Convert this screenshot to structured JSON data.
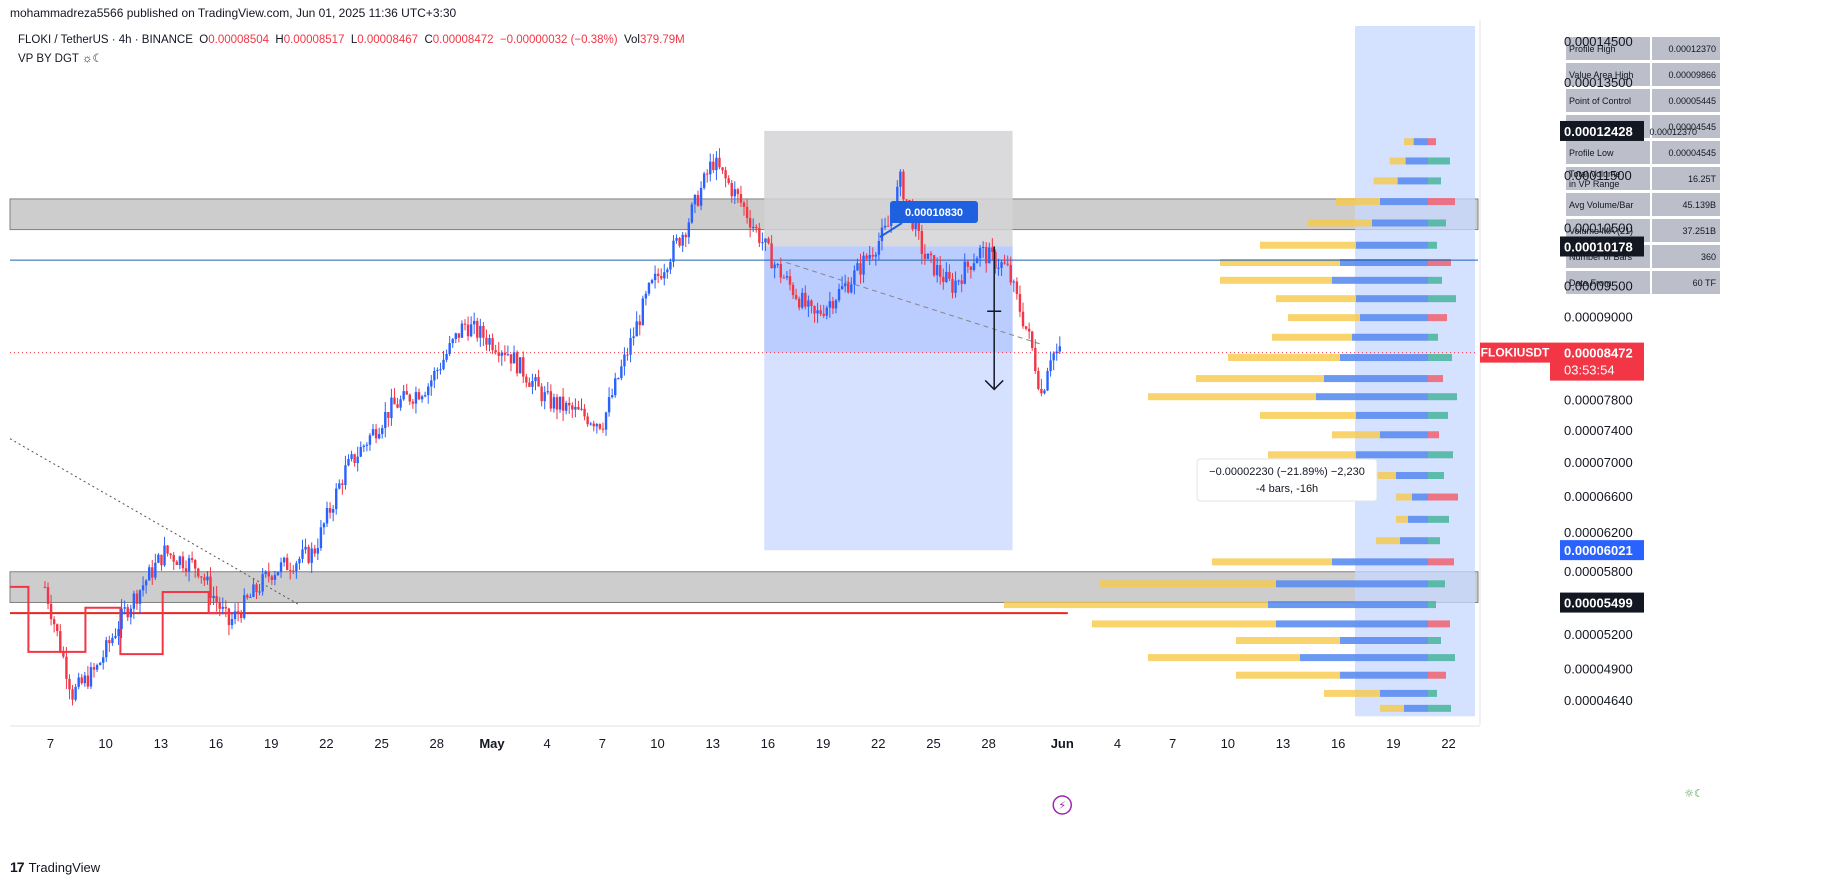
{
  "header": {
    "published": "mohammadreza5566 published on TradingView.com, Jun 01, 2025 11:36 UTC+3:30"
  },
  "legend": {
    "symbol": "FLOKI / TetherUS · 4h · BINANCE",
    "o_label": "O",
    "o_value": "0.00008504",
    "h_label": "H",
    "h_value": "0.00008517",
    "l_label": "L",
    "l_value": "0.00008467",
    "c_label": "C",
    "c_value": "0.00008472",
    "change": "−0.00000032 (−0.38%)",
    "vol_label": "Vol",
    "vol_value": "379.79M",
    "indicator": "VP BY DGT ☼☾"
  },
  "footer": {
    "logo": "17",
    "brand": "TradingView"
  },
  "colors": {
    "up": "#2962ff",
    "down": "#f23645",
    "bg": "#ffffff",
    "zone": "#c8c8c8",
    "measure_fill": "#bcd0ff",
    "vp_up": "#f7c948",
    "vp_down": "#5b8def"
  },
  "chart_data": {
    "type": "candlestick",
    "title": "FLOKI / TetherUS · 4h · BINANCE",
    "y_axis": {
      "scale": "log",
      "range": [
        4.45e-05,
        0.0001485
      ]
    },
    "y_ticks": [
      "0.00014500",
      "0.00013500",
      "0.00011500",
      "0.00010500",
      "0.00009500",
      "0.00009000",
      "0.00007800",
      "0.00007400",
      "0.00007000",
      "0.00006600",
      "0.00006200",
      "0.00005800",
      "0.00005200",
      "0.00004900",
      "0.00004640"
    ],
    "y_tick_values": [
      0.000145,
      0.000135,
      0.000115,
      0.000105,
      9.5e-05,
      9e-05,
      7.8e-05,
      7.4e-05,
      7e-05,
      6.6e-05,
      6.2e-05,
      5.8e-05,
      5.2e-05,
      4.9e-05,
      4.64e-05
    ],
    "x_ticks": [
      "7",
      "10",
      "13",
      "16",
      "19",
      "22",
      "25",
      "28",
      "May",
      "4",
      "7",
      "10",
      "13",
      "16",
      "19",
      "22",
      "25",
      "28",
      "Jun",
      "4",
      "7",
      "10",
      "13",
      "16",
      "19",
      "22"
    ],
    "x_tick_days": [
      7,
      10,
      13,
      16,
      19,
      22,
      25,
      28,
      31,
      34,
      37,
      40,
      43,
      46,
      49,
      52,
      55,
      58,
      62,
      65,
      68,
      71,
      74,
      77,
      80,
      83
    ],
    "x_range_days": [
      4.8,
      84.6
    ],
    "anchor_points": [
      {
        "day": 6.7,
        "price": 5.65e-05
      },
      {
        "day": 8.2,
        "price": 4.7e-05
      },
      {
        "day": 9.5,
        "price": 4.9e-05
      },
      {
        "day": 11,
        "price": 5.4e-05
      },
      {
        "day": 13.2,
        "price": 6e-05
      },
      {
        "day": 15,
        "price": 5.85e-05
      },
      {
        "day": 16.7,
        "price": 5.3e-05
      },
      {
        "day": 19,
        "price": 5.8e-05
      },
      {
        "day": 21.3,
        "price": 6e-05
      },
      {
        "day": 23,
        "price": 6.9e-05
      },
      {
        "day": 25.5,
        "price": 7.7e-05
      },
      {
        "day": 27.5,
        "price": 8e-05
      },
      {
        "day": 29.5,
        "price": 8.9e-05
      },
      {
        "day": 31.8,
        "price": 8.5e-05
      },
      {
        "day": 34,
        "price": 7.8e-05
      },
      {
        "day": 37,
        "price": 7.5e-05
      },
      {
        "day": 39.5,
        "price": 9.4e-05
      },
      {
        "day": 41.5,
        "price": 0.000105
      },
      {
        "day": 43,
        "price": 0.000118
      },
      {
        "day": 44.5,
        "price": 0.00011
      },
      {
        "day": 46.5,
        "price": 9.8e-05
      },
      {
        "day": 48.5,
        "price": 9e-05
      },
      {
        "day": 50.5,
        "price": 9.6e-05
      },
      {
        "day": 52.5,
        "price": 0.000105
      },
      {
        "day": 53.2,
        "price": 0.000114
      },
      {
        "day": 54.5,
        "price": 0.0001
      },
      {
        "day": 56,
        "price": 9.5e-05
      },
      {
        "day": 57.5,
        "price": 0.000101
      },
      {
        "day": 59,
        "price": 9.8e-05
      },
      {
        "day": 60.3,
        "price": 8.6e-05
      },
      {
        "day": 60.9,
        "price": 7.85e-05
      },
      {
        "day": 61.3,
        "price": 8.45e-05
      },
      {
        "day": 62.0,
        "price": 8.47e-05
      }
    ],
    "last_price": 8.472e-05,
    "horizontal_lines": [
      {
        "price": 9.94e-05,
        "color": "#1e60b0"
      },
      {
        "price": 5.4e-05,
        "color": "#e8261e",
        "x_end_day": 62.3
      }
    ],
    "zones": [
      {
        "top": 0.0001105,
        "bottom": 0.0001048
      },
      {
        "top": 5.8e-05,
        "bottom": 5.5e-05
      }
    ],
    "measure_box": {
      "x0_day": 45.8,
      "x1_day": 59.3,
      "top": 0.0001243,
      "bottom": 6.02e-05,
      "split": 0.0001018
    },
    "measure_label": [
      "−0.00002230 (−21.89%) −2,230",
      "-4 bars, -16h"
    ],
    "callout_label": "0.00010830",
    "step_line": [
      {
        "day": 4.8,
        "price": 5.65e-05
      },
      {
        "day": 5.8,
        "price": 5.65e-05
      },
      {
        "day": 5.8,
        "price": 5.05e-05
      },
      {
        "day": 8.9,
        "price": 5.05e-05
      },
      {
        "day": 8.9,
        "price": 5.45e-05
      },
      {
        "day": 10.8,
        "price": 5.45e-05
      },
      {
        "day": 10.8,
        "price": 5.03e-05
      },
      {
        "day": 13.1,
        "price": 5.03e-05
      },
      {
        "day": 13.1,
        "price": 5.6e-05
      },
      {
        "day": 15.6,
        "price": 5.6e-05
      },
      {
        "day": 15.6,
        "price": 5.4e-05
      },
      {
        "day": 17,
        "price": 5.4e-05
      }
    ],
    "price_badges": [
      {
        "label": "0.00012428",
        "price": 0.00012428,
        "bg": "#131722"
      },
      {
        "label": "0.00010178",
        "price": 0.00010178,
        "bg": "#131722"
      },
      {
        "label": "FLOKIUSDT",
        "label2": "0.00008472",
        "timer": "03:53:54",
        "price": 8.472e-05,
        "bg": "#f23645"
      },
      {
        "label": "0.00006021",
        "price": 6.021e-05,
        "bg": "#2962ff"
      },
      {
        "label": "0.00005499",
        "price": 5.499e-05,
        "bg": "#131722"
      }
    ],
    "vp_table": [
      [
        "Profile High",
        "0.00012370"
      ],
      [
        "Value Area High",
        "0.00009866"
      ],
      [
        "Point of Control",
        "0.00005445"
      ],
      [
        "Value Area Low",
        "0.00004545"
      ],
      [
        "Profile Low",
        "0.00004545"
      ],
      [
        "Total Volume\nin VP Range",
        "16.25T"
      ],
      [
        "Avg Volume/Bar",
        "45.139B"
      ],
      [
        "Volume MA (21)",
        "37.251B"
      ],
      [
        "Number of Bars",
        "360"
      ],
      [
        "Data From",
        "60 TF"
      ]
    ],
    "vp_overlay_label": "0.00012370",
    "volume_profile": [
      {
        "price": 0.000122,
        "up": 12,
        "down": 18
      },
      {
        "price": 0.000118,
        "up": 20,
        "down": 28
      },
      {
        "price": 0.000114,
        "up": 30,
        "down": 38
      },
      {
        "price": 0.00011,
        "up": 55,
        "down": 60
      },
      {
        "price": 0.000106,
        "up": 80,
        "down": 70
      },
      {
        "price": 0.000102,
        "up": 120,
        "down": 90
      },
      {
        "price": 9.9e-05,
        "up": 150,
        "down": 110
      },
      {
        "price": 9.6e-05,
        "up": 140,
        "down": 120
      },
      {
        "price": 9.3e-05,
        "up": 100,
        "down": 90
      },
      {
        "price": 9e-05,
        "up": 90,
        "down": 85
      },
      {
        "price": 8.7e-05,
        "up": 100,
        "down": 95
      },
      {
        "price": 8.4e-05,
        "up": 140,
        "down": 110
      },
      {
        "price": 8.1e-05,
        "up": 160,
        "down": 130
      },
      {
        "price": 7.85e-05,
        "up": 210,
        "down": 140
      },
      {
        "price": 7.6e-05,
        "up": 120,
        "down": 90
      },
      {
        "price": 7.35e-05,
        "up": 60,
        "down": 60
      },
      {
        "price": 7.1e-05,
        "up": 110,
        "down": 90
      },
      {
        "price": 6.85e-05,
        "up": 50,
        "down": 40
      },
      {
        "price": 6.6e-05,
        "up": 20,
        "down": 20
      },
      {
        "price": 6.35e-05,
        "up": 15,
        "down": 25
      },
      {
        "price": 6.12e-05,
        "up": 30,
        "down": 35
      },
      {
        "price": 5.9e-05,
        "up": 150,
        "down": 120
      },
      {
        "price": 5.68e-05,
        "up": 220,
        "down": 190
      },
      {
        "price": 5.48e-05,
        "up": 330,
        "down": 200
      },
      {
        "price": 5.3e-05,
        "up": 230,
        "down": 190
      },
      {
        "price": 5.15e-05,
        "up": 130,
        "down": 110
      },
      {
        "price": 5e-05,
        "up": 190,
        "down": 160
      },
      {
        "price": 4.85e-05,
        "up": 130,
        "down": 110
      },
      {
        "price": 4.7e-05,
        "up": 70,
        "down": 60
      },
      {
        "price": 4.58e-05,
        "up": 30,
        "down": 30
      }
    ]
  }
}
